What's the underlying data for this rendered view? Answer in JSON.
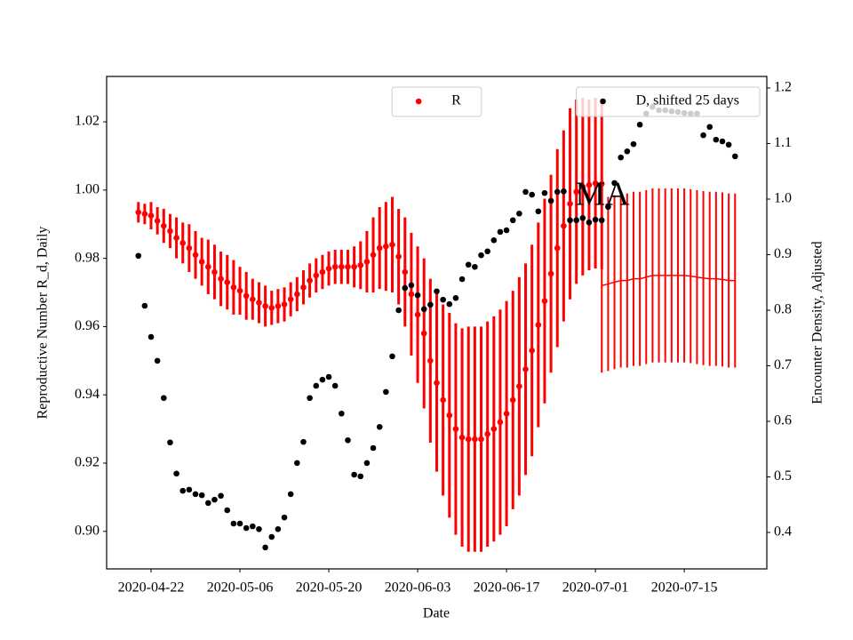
{
  "chart_data": {
    "type": "errorbar-dual",
    "x_label": "Date",
    "y_label": "Reproductive Number R_d, Daily",
    "y2_label": "Encounter Density, Adjusted",
    "annotation": "MA",
    "y_label_color": "#ff0000",
    "xlim": [
      "2020-04-15",
      "2020-07-28"
    ],
    "xticks": [
      "2020-04-22",
      "2020-05-06",
      "2020-05-20",
      "2020-06-03",
      "2020-06-17",
      "2020-07-01",
      "2020-07-15"
    ],
    "ylim": [
      0.889,
      1.0333
    ],
    "yticks": [
      {
        "value": 0.9,
        "label": "0.90"
      },
      0.92,
      0.94,
      0.96,
      0.98,
      {
        "value": 1,
        "label": "1.00"
      },
      1.02
    ],
    "y2lim": [
      0.3344,
      1.2208
    ],
    "y2ticks": [
      0.4,
      0.5,
      0.6,
      0.7,
      0.8,
      0.9,
      {
        "value": 1,
        "label": "1.0"
      },
      1.1,
      1.2
    ],
    "series": [
      {
        "name": "R",
        "color": "#ff0000",
        "axis": "y",
        "marker": "dot",
        "legend_loc": "upper center",
        "x": [
          "2020-04-20",
          "2020-04-21",
          "2020-04-22",
          "2020-04-23",
          "2020-04-24",
          "2020-04-25",
          "2020-04-26",
          "2020-04-27",
          "2020-04-28",
          "2020-04-29",
          "2020-04-30",
          "2020-05-01",
          "2020-05-02",
          "2020-05-03",
          "2020-05-04",
          "2020-05-05",
          "2020-05-06",
          "2020-05-07",
          "2020-05-08",
          "2020-05-09",
          "2020-05-10",
          "2020-05-11",
          "2020-05-12",
          "2020-05-13",
          "2020-05-14",
          "2020-05-15",
          "2020-05-16",
          "2020-05-17",
          "2020-05-18",
          "2020-05-19",
          "2020-05-20",
          "2020-05-21",
          "2020-05-22",
          "2020-05-23",
          "2020-05-24",
          "2020-05-25",
          "2020-05-26",
          "2020-05-27",
          "2020-05-28",
          "2020-05-29",
          "2020-05-30",
          "2020-05-31",
          "2020-06-01",
          "2020-06-02",
          "2020-06-03",
          "2020-06-04",
          "2020-06-05",
          "2020-06-06",
          "2020-06-07",
          "2020-06-08",
          "2020-06-09",
          "2020-06-10",
          "2020-06-11",
          "2020-06-12",
          "2020-06-13",
          "2020-06-14",
          "2020-06-15",
          "2020-06-16",
          "2020-06-17",
          "2020-06-18",
          "2020-06-19",
          "2020-06-20",
          "2020-06-21",
          "2020-06-22",
          "2020-06-23",
          "2020-06-24",
          "2020-06-25",
          "2020-06-26",
          "2020-06-27",
          "2020-06-28",
          "2020-06-29",
          "2020-06-30",
          "2020-07-01",
          "2020-07-02"
        ],
        "values": [
          0.9935,
          0.993,
          0.9925,
          0.991,
          0.9895,
          0.988,
          0.986,
          0.9845,
          0.983,
          0.981,
          0.979,
          0.9775,
          0.976,
          0.974,
          0.973,
          0.9715,
          0.9705,
          0.969,
          0.968,
          0.967,
          0.966,
          0.9655,
          0.966,
          0.9665,
          0.968,
          0.9695,
          0.9715,
          0.9735,
          0.975,
          0.976,
          0.977,
          0.9775,
          0.9775,
          0.9775,
          0.9775,
          0.978,
          0.979,
          0.981,
          0.983,
          0.9835,
          0.984,
          0.9805,
          0.976,
          0.9695,
          0.9635,
          0.958,
          0.95,
          0.9435,
          0.9385,
          0.934,
          0.93,
          0.9275,
          0.927,
          0.927,
          0.927,
          0.9285,
          0.93,
          0.932,
          0.9345,
          0.9385,
          0.9425,
          0.9475,
          0.953,
          0.9605,
          0.9675,
          0.9755,
          0.983,
          0.9895,
          0.996,
          0.9995,
          1.001,
          1.0015,
          1.002,
          1.0018
        ],
        "errors": [
          0.003,
          0.003,
          0.004,
          0.004,
          0.005,
          0.005,
          0.006,
          0.006,
          0.007,
          0.007,
          0.007,
          0.008,
          0.008,
          0.008,
          0.008,
          0.008,
          0.007,
          0.007,
          0.006,
          0.006,
          0.006,
          0.005,
          0.005,
          0.005,
          0.005,
          0.005,
          0.005,
          0.005,
          0.005,
          0.005,
          0.005,
          0.005,
          0.005,
          0.005,
          0.006,
          0.007,
          0.009,
          0.011,
          0.012,
          0.013,
          0.014,
          0.014,
          0.016,
          0.018,
          0.02,
          0.022,
          0.024,
          0.026,
          0.028,
          0.03,
          0.031,
          0.032,
          0.033,
          0.033,
          0.033,
          0.033,
          0.033,
          0.033,
          0.033,
          0.032,
          0.032,
          0.031,
          0.031,
          0.03,
          0.03,
          0.029,
          0.029,
          0.028,
          0.028,
          0.027,
          0.026,
          0.025,
          0.025,
          0.025
        ]
      },
      {
        "color": "#ff0000",
        "axis": "y",
        "marker": "line",
        "x": [
          "2020-07-02",
          "2020-07-03",
          "2020-07-04",
          "2020-07-05",
          "2020-07-06",
          "2020-07-07",
          "2020-07-08",
          "2020-07-09",
          "2020-07-10",
          "2020-07-11",
          "2020-07-12",
          "2020-07-13",
          "2020-07-14",
          "2020-07-15",
          "2020-07-16",
          "2020-07-17",
          "2020-07-18",
          "2020-07-19",
          "2020-07-20",
          "2020-07-21",
          "2020-07-22",
          "2020-07-23"
        ],
        "values": [
          0.972,
          0.9725,
          0.973,
          0.9735,
          0.9735,
          0.974,
          0.974,
          0.9745,
          0.975,
          0.975,
          0.975,
          0.975,
          0.975,
          0.975,
          0.9748,
          0.9745,
          0.9742,
          0.974,
          0.974,
          0.9738,
          0.9735,
          0.9735
        ],
        "errors": [
          0.0255,
          0.0255,
          0.0255,
          0.0255,
          0.0255,
          0.0255,
          0.0255,
          0.0255,
          0.0255,
          0.0255,
          0.0255,
          0.0255,
          0.0255,
          0.0255,
          0.0255,
          0.0255,
          0.0255,
          0.0255,
          0.0255,
          0.0255,
          0.0255,
          0.0255
        ]
      },
      {
        "name": "D, shifted 25 days",
        "color": "#000000",
        "axis": "y2",
        "marker": "dot",
        "legend_loc": "upper right",
        "x": [
          "2020-04-20",
          "2020-04-21",
          "2020-04-22",
          "2020-04-23",
          "2020-04-24",
          "2020-04-25",
          "2020-04-26",
          "2020-04-27",
          "2020-04-28",
          "2020-04-29",
          "2020-04-30",
          "2020-05-01",
          "2020-05-02",
          "2020-05-03",
          "2020-05-04",
          "2020-05-05",
          "2020-05-06",
          "2020-05-07",
          "2020-05-08",
          "2020-05-09",
          "2020-05-10",
          "2020-05-11",
          "2020-05-12",
          "2020-05-13",
          "2020-05-14",
          "2020-05-15",
          "2020-05-16",
          "2020-05-17",
          "2020-05-18",
          "2020-05-19",
          "2020-05-20",
          "2020-05-21",
          "2020-05-22",
          "2020-05-23",
          "2020-05-24",
          "2020-05-25",
          "2020-05-26",
          "2020-05-27",
          "2020-05-28",
          "2020-05-29",
          "2020-05-30",
          "2020-05-31",
          "2020-06-01",
          "2020-06-02",
          "2020-06-03",
          "2020-06-04",
          "2020-06-05",
          "2020-06-06",
          "2020-06-07",
          "2020-06-08",
          "2020-06-09",
          "2020-06-10",
          "2020-06-11",
          "2020-06-12",
          "2020-06-13",
          "2020-06-14",
          "2020-06-15",
          "2020-06-16",
          "2020-06-17",
          "2020-06-18",
          "2020-06-19",
          "2020-06-20",
          "2020-06-21",
          "2020-06-22",
          "2020-06-23",
          "2020-06-24",
          "2020-06-25",
          "2020-06-26",
          "2020-06-27",
          "2020-06-28",
          "2020-06-29",
          "2020-06-30",
          "2020-07-01",
          "2020-07-02",
          "2020-07-03",
          "2020-07-04",
          "2020-07-05",
          "2020-07-06",
          "2020-07-07",
          "2020-07-08",
          "2020-07-09",
          "2020-07-10",
          "2020-07-11",
          "2020-07-12",
          "2020-07-13",
          "2020-07-14",
          "2020-07-15",
          "2020-07-16",
          "2020-07-17",
          "2020-07-18",
          "2020-07-19",
          "2020-07-20",
          "2020-07-21",
          "2020-07-22",
          "2020-07-23"
        ],
        "values": [
          0.898,
          0.808,
          0.752,
          0.709,
          0.642,
          0.562,
          0.506,
          0.475,
          0.477,
          0.469,
          0.467,
          0.453,
          0.459,
          0.466,
          0.44,
          0.416,
          0.416,
          0.408,
          0.411,
          0.406,
          0.373,
          0.392,
          0.406,
          0.427,
          0.469,
          0.525,
          0.563,
          0.642,
          0.664,
          0.675,
          0.68,
          0.664,
          0.614,
          0.566,
          0.504,
          0.501,
          0.525,
          0.552,
          0.59,
          0.653,
          0.717,
          0.8,
          0.84,
          0.845,
          0.827,
          0.802,
          0.81,
          0.834,
          0.819,
          0.811,
          0.822,
          0.856,
          0.882,
          0.878,
          0.899,
          0.906,
          0.926,
          0.941,
          0.944,
          0.962,
          0.974,
          1.013,
          1.008,
          0.978,
          1.011,
          0.997,
          1.013,
          1.014,
          0.962,
          0.962,
          0.966,
          0.958,
          0.963,
          0.962,
          0.986,
          1.029,
          1.075,
          1.086,
          1.099,
          1.134,
          1.154,
          1.166,
          1.16,
          1.16,
          1.158,
          1.157,
          1.155,
          1.154,
          1.154,
          1.115,
          1.13,
          1.107,
          1.104,
          1.098,
          1.077
        ]
      }
    ]
  }
}
